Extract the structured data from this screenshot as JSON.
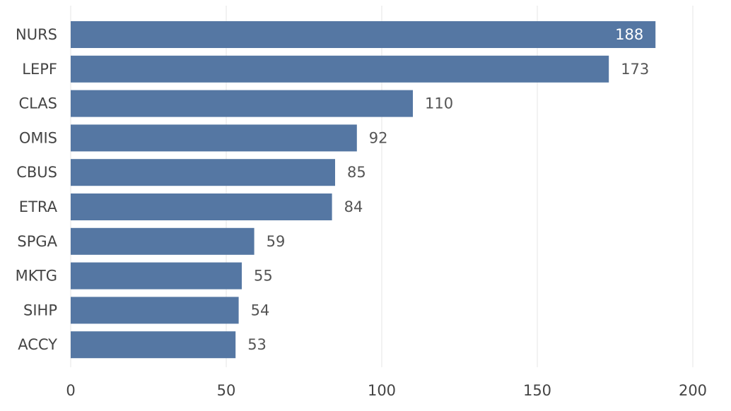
{
  "chart_data": {
    "type": "bar",
    "orientation": "horizontal",
    "title": "",
    "xlabel": "",
    "ylabel": "",
    "categories": [
      "NURS",
      "LEPF",
      "CLAS",
      "OMIS",
      "CBUS",
      "ETRA",
      "SPGA",
      "MKTG",
      "SIHP",
      "ACCY"
    ],
    "values": [
      188,
      173,
      110,
      92,
      85,
      84,
      59,
      55,
      54,
      53
    ],
    "xlim": [
      0,
      200
    ],
    "xticks": [
      0,
      50,
      100,
      150,
      200
    ],
    "grid": "vertical",
    "legend": "none",
    "data_labels": "shown",
    "colors": {
      "bar": "#5577a3",
      "grid": "#ebebeb",
      "text": "#444444",
      "label_inside": "#ffffff",
      "label_outside": "#555555"
    }
  }
}
